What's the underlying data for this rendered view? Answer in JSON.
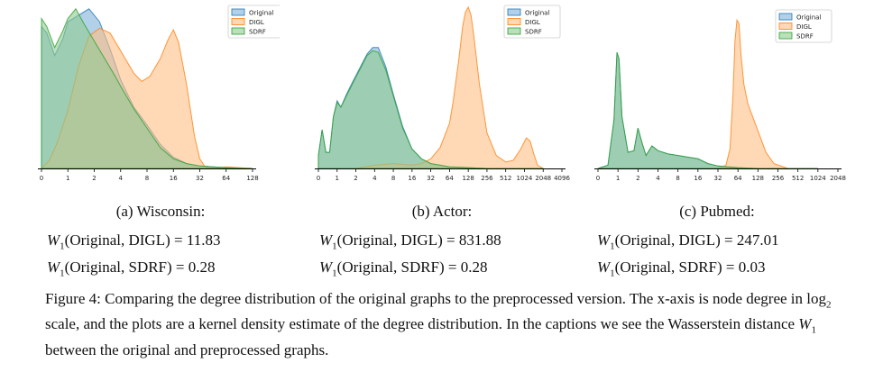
{
  "chart_data": [
    {
      "type": "area",
      "series": [
        {
          "name": "Original",
          "color": "#7fb2d9",
          "stroke": "#1f77b4",
          "x": [
            0,
            0.2,
            0.5,
            0.8,
            1.0,
            1.2,
            1.5,
            1.8,
            2.2,
            2.6,
            3.0,
            3.5,
            4.0,
            4.5,
            5.0,
            5.5,
            6.0,
            6.5,
            7.0,
            7.5,
            8.0
          ],
          "y": [
            0.88,
            0.84,
            0.7,
            0.8,
            0.91,
            0.93,
            0.96,
            0.99,
            0.91,
            0.74,
            0.55,
            0.38,
            0.27,
            0.15,
            0.07,
            0.03,
            0.015,
            0.01,
            0.005,
            0.002,
            0.0
          ]
        },
        {
          "name": "DIGL",
          "color": "#ffbe86",
          "stroke": "#ff7f0e",
          "x": [
            0,
            0.3,
            0.6,
            1.0,
            1.4,
            1.8,
            2.2,
            2.6,
            3.0,
            3.5,
            3.8,
            4.1,
            4.5,
            4.8,
            5.0,
            5.2,
            5.5,
            5.8,
            6.0,
            6.2,
            6.5,
            7.0,
            7.5,
            8.0
          ],
          "y": [
            0.0,
            0.05,
            0.16,
            0.36,
            0.63,
            0.82,
            0.87,
            0.84,
            0.73,
            0.59,
            0.54,
            0.57,
            0.68,
            0.8,
            0.86,
            0.78,
            0.52,
            0.2,
            0.06,
            0.01,
            0.0,
            0.01,
            0.005,
            0.0
          ]
        },
        {
          "name": "SDRF",
          "color": "#8fca8f",
          "stroke": "#2ca02c",
          "x": [
            0,
            0.2,
            0.5,
            0.8,
            1.0,
            1.3,
            1.6,
            2.0,
            2.4,
            2.8,
            3.0,
            3.5,
            4.0,
            4.5,
            5.0,
            5.5,
            6.0,
            6.5,
            7.0,
            7.5,
            8.0
          ],
          "y": [
            0.93,
            0.88,
            0.75,
            0.85,
            0.93,
            0.99,
            0.9,
            0.79,
            0.68,
            0.57,
            0.51,
            0.37,
            0.25,
            0.13,
            0.06,
            0.03,
            0.015,
            0.01,
            0.005,
            0.002,
            0.0
          ]
        }
      ],
      "xticks": [
        "0",
        "1",
        "2",
        "4",
        "8",
        "16",
        "32",
        "64",
        "128"
      ],
      "legend_placement": "top-right"
    },
    {
      "type": "area",
      "series": [
        {
          "name": "Original",
          "color": "#7fb2d9",
          "stroke": "#1f77b4",
          "x": [
            0,
            0.2,
            0.4,
            0.6,
            0.8,
            1.0,
            1.2,
            1.5,
            1.8,
            2.2,
            2.6,
            2.9,
            3.2,
            3.6,
            4.0,
            4.5,
            5.0,
            5.5,
            6.0,
            6.5,
            7.0,
            8.0,
            9.0,
            10.0,
            12.0
          ],
          "y": [
            0.08,
            0.24,
            0.1,
            0.1,
            0.32,
            0.42,
            0.38,
            0.46,
            0.53,
            0.62,
            0.71,
            0.75,
            0.75,
            0.63,
            0.46,
            0.26,
            0.12,
            0.06,
            0.03,
            0.02,
            0.01,
            0.005,
            0.0,
            0.0,
            0.0
          ]
        },
        {
          "name": "DIGL",
          "color": "#ffbe86",
          "stroke": "#ff7f0e",
          "x": [
            0,
            1.0,
            2.0,
            3.0,
            4.0,
            5.0,
            5.5,
            6.0,
            6.5,
            7.0,
            7.2,
            7.5,
            7.7,
            7.85,
            8.0,
            8.15,
            8.3,
            8.6,
            9.0,
            9.5,
            10.0,
            10.4,
            10.8,
            11.1,
            11.3,
            11.5,
            11.7,
            12.0
          ],
          "y": [
            0.0,
            0.0,
            0.0,
            0.02,
            0.03,
            0.02,
            0.03,
            0.06,
            0.13,
            0.28,
            0.42,
            0.68,
            0.88,
            0.97,
            1.0,
            0.95,
            0.82,
            0.52,
            0.22,
            0.08,
            0.04,
            0.05,
            0.12,
            0.19,
            0.17,
            0.09,
            0.02,
            0.0
          ]
        },
        {
          "name": "SDRF",
          "color": "#8fca8f",
          "stroke": "#2ca02c",
          "x": [
            0,
            0.2,
            0.4,
            0.6,
            0.8,
            1.0,
            1.2,
            1.5,
            1.8,
            2.2,
            2.6,
            2.9,
            3.2,
            3.6,
            4.0,
            4.5,
            5.0,
            5.5,
            6.0,
            6.5,
            7.0,
            8.0,
            9.0,
            10.0,
            12.0
          ],
          "y": [
            0.08,
            0.24,
            0.1,
            0.1,
            0.32,
            0.41,
            0.38,
            0.45,
            0.52,
            0.61,
            0.7,
            0.73,
            0.72,
            0.61,
            0.45,
            0.25,
            0.12,
            0.06,
            0.03,
            0.02,
            0.01,
            0.005,
            0.0,
            0.0,
            0.0
          ]
        }
      ],
      "xticks": [
        "0",
        "1",
        "2",
        "4",
        "8",
        "16",
        "32",
        "64",
        "128",
        "256",
        "512",
        "1024",
        "2048",
        "4096"
      ],
      "legend_placement": "top-right"
    },
    {
      "type": "area",
      "series": [
        {
          "name": "Original",
          "color": "#7fb2d9",
          "stroke": "#1f77b4",
          "x": [
            0,
            0.5,
            0.8,
            0.95,
            1.05,
            1.2,
            1.5,
            1.8,
            2.0,
            2.2,
            2.4,
            2.7,
            3.0,
            3.5,
            4.0,
            4.5,
            5.0,
            5.5,
            6.0,
            6.5,
            7.0,
            8.0,
            11.0
          ],
          "y": [
            0.0,
            0.02,
            0.3,
            0.72,
            0.68,
            0.32,
            0.1,
            0.11,
            0.25,
            0.16,
            0.08,
            0.14,
            0.11,
            0.09,
            0.08,
            0.07,
            0.06,
            0.03,
            0.015,
            0.01,
            0.005,
            0.0,
            0.0
          ]
        },
        {
          "name": "DIGL",
          "color": "#ffbe86",
          "stroke": "#ff7f0e",
          "x": [
            0,
            5.0,
            6.0,
            6.4,
            6.6,
            6.75,
            6.85,
            6.95,
            7.05,
            7.15,
            7.3,
            7.5,
            7.8,
            8.1,
            8.4,
            8.8,
            9.5,
            11.0
          ],
          "y": [
            0.0,
            0.0,
            0.0,
            0.02,
            0.12,
            0.45,
            0.79,
            0.92,
            0.9,
            0.71,
            0.52,
            0.4,
            0.3,
            0.2,
            0.1,
            0.03,
            0.0,
            0.0
          ]
        },
        {
          "name": "SDRF",
          "color": "#8fca8f",
          "stroke": "#2ca02c",
          "x": [
            0,
            0.5,
            0.8,
            0.95,
            1.05,
            1.2,
            1.5,
            1.8,
            2.0,
            2.2,
            2.4,
            2.7,
            3.0,
            3.5,
            4.0,
            4.5,
            5.0,
            5.5,
            6.0,
            6.5,
            7.0,
            8.0,
            11.0
          ],
          "y": [
            0.0,
            0.02,
            0.3,
            0.72,
            0.68,
            0.32,
            0.1,
            0.11,
            0.25,
            0.16,
            0.08,
            0.14,
            0.11,
            0.09,
            0.08,
            0.07,
            0.06,
            0.03,
            0.015,
            0.01,
            0.005,
            0.0,
            0.0
          ]
        }
      ],
      "xticks": [
        "0",
        "1",
        "2",
        "4",
        "8",
        "16",
        "32",
        "64",
        "128",
        "256",
        "512",
        "1024",
        "2048"
      ],
      "legend_placement": "top-right"
    }
  ],
  "captions": [
    "(a) Wisconsin:",
    "(b) Actor:",
    "(c) Pubmed:"
  ],
  "metrics": [
    {
      "digl_label": "(Original, DIGL) = ",
      "digl_value": "11.83",
      "sdrf_label": "(Original, SDRF) = ",
      "sdrf_value": "0.28"
    },
    {
      "digl_label": "(Original, DIGL) = ",
      "digl_value": "831.88",
      "sdrf_label": "(Original, SDRF) = ",
      "sdrf_value": "0.28"
    },
    {
      "digl_label": "(Original, DIGL) = ",
      "digl_value": "247.01",
      "sdrf_label": "(Original, SDRF) = ",
      "sdrf_value": "0.03"
    }
  ],
  "metric_symbol": "W",
  "metric_sub": "1",
  "figure_caption": {
    "part1": "Figure 4: Comparing the degree distribution of the original graphs to the preprocessed version. The x-axis is node degree in log",
    "log_sub": "2",
    "part2": " scale, and the plots are a kernel density estimate of the degree distribution. In the captions we see the Wasserstein distance ",
    "symbol": "W",
    "symbol_sub": "1",
    "part3": " between the original and preprocessed graphs."
  }
}
